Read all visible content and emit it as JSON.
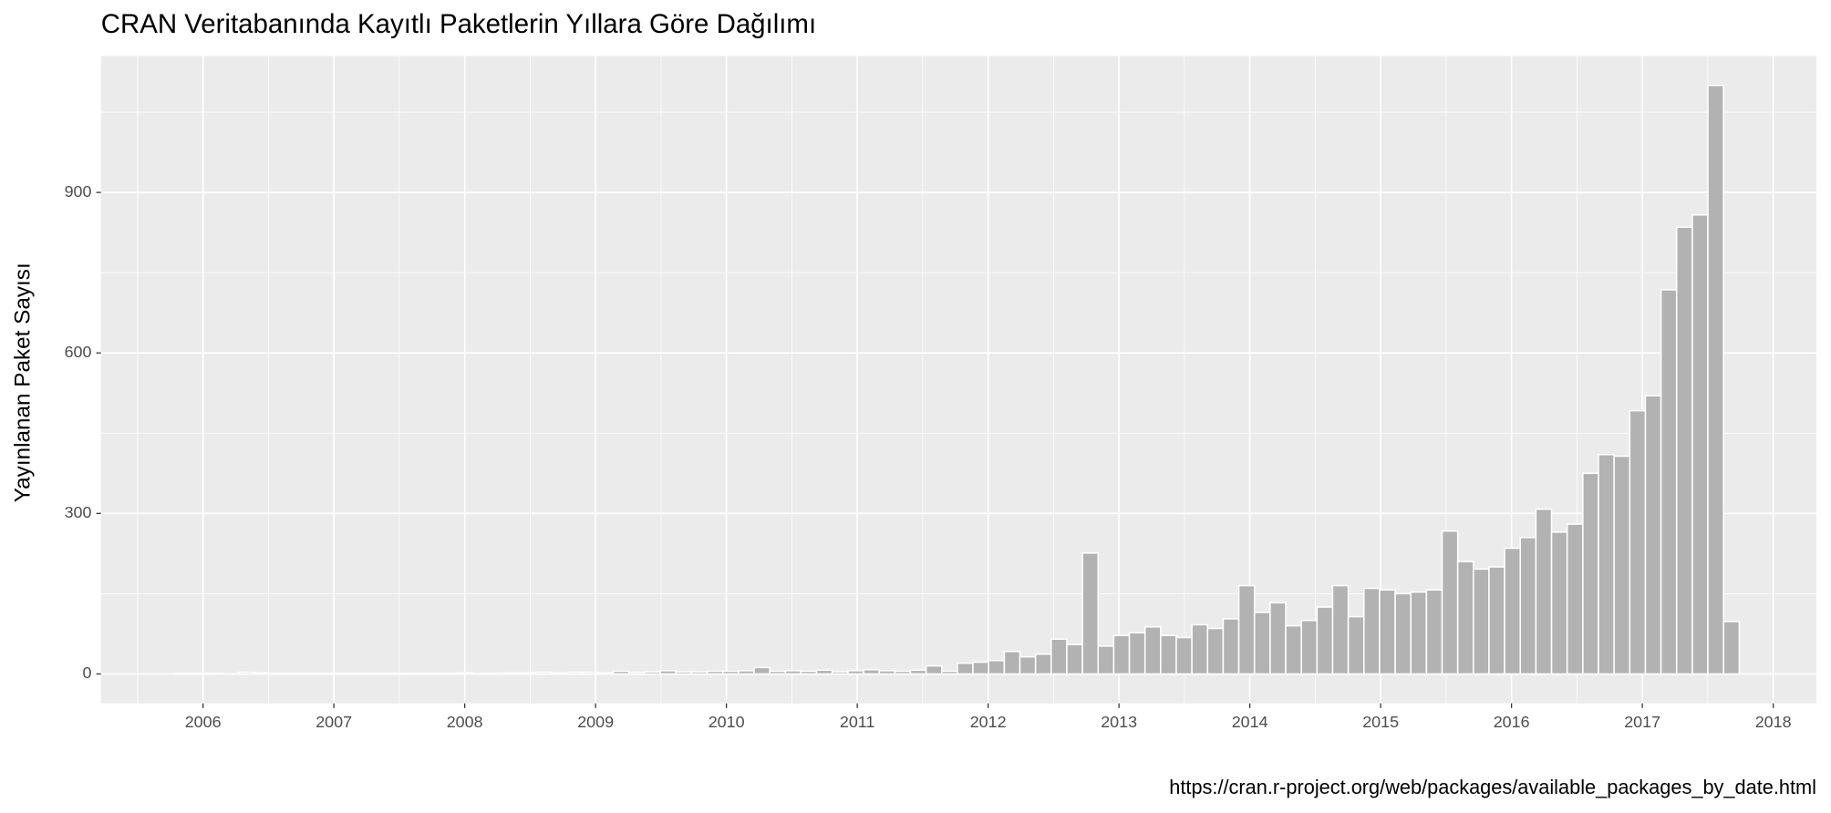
{
  "chart_data": {
    "type": "histogram",
    "title": "CRAN Veritabanında Kayıtlı Paketlerin Yıllara Göre Dağılımı",
    "ylabel": "Yayınlanan Paket Sayısı",
    "caption": "https://cran.r-project.org/web/packages/available_packages_by_date.html",
    "color": "#b2b2b2",
    "bins": [
      2005.79,
      2005.9095,
      2006.029,
      2006.1485,
      2006.268,
      2006.3875,
      2006.507,
      2006.6265,
      2006.746,
      2006.8655,
      2006.985,
      2007.1045,
      2007.224,
      2007.3435,
      2007.463,
      2007.5825,
      2007.702,
      2007.8215,
      2007.941,
      2008.0605,
      2008.18,
      2008.2995,
      2008.419,
      2008.5385,
      2008.658,
      2008.7775,
      2008.897,
      2009.0165,
      2009.136,
      2009.2555,
      2009.375,
      2009.4945,
      2009.614,
      2009.7335,
      2009.853,
      2009.9725,
      2010.092,
      2010.2115,
      2010.331,
      2010.4505,
      2010.57,
      2010.6895,
      2010.809,
      2010.9285,
      2011.048,
      2011.1675,
      2011.287,
      2011.4065,
      2011.526,
      2011.6455,
      2011.765,
      2011.8845,
      2012.004,
      2012.1235,
      2012.243,
      2012.3625,
      2012.482,
      2012.6015,
      2012.721,
      2012.8405,
      2012.96,
      2013.0795,
      2013.199,
      2013.3185,
      2013.438,
      2013.5575,
      2013.677,
      2013.7965,
      2013.916,
      2014.0355,
      2014.155,
      2014.2745,
      2014.394,
      2014.5135,
      2014.633,
      2014.7525,
      2014.872,
      2014.9915,
      2015.111,
      2015.2305,
      2015.35,
      2015.4695,
      2015.589,
      2015.7085,
      2015.828,
      2015.9475,
      2016.067,
      2016.1865,
      2016.306,
      2016.4255,
      2016.545,
      2016.6645,
      2016.784,
      2016.9035,
      2017.023,
      2017.1425,
      2017.262,
      2017.3815,
      2017.501,
      2017.6205,
      2017.74
    ],
    "values": [
      1,
      1,
      1,
      0,
      3,
      2,
      1,
      1,
      1,
      1,
      1,
      1,
      1,
      1,
      1,
      1,
      1,
      1,
      2,
      1,
      1,
      2,
      2,
      3,
      2,
      3,
      3,
      2,
      5,
      3,
      4,
      6,
      4,
      4,
      5,
      5,
      6,
      12,
      5,
      6,
      5,
      7,
      4,
      6,
      8,
      6,
      5,
      7,
      15,
      5,
      20,
      22,
      25,
      42,
      32,
      37,
      65,
      55,
      226,
      52,
      72,
      77,
      88,
      72,
      68,
      92,
      85,
      103,
      165,
      115,
      133,
      90,
      100,
      125,
      165,
      107,
      160,
      157,
      150,
      153,
      157,
      267,
      210,
      196,
      200,
      235,
      255,
      308,
      265,
      280,
      375,
      410,
      407,
      492,
      520,
      718,
      835,
      858,
      1100,
      98
    ],
    "xlim": [
      2005.22,
      2018.33
    ],
    "xticks": [
      2006,
      2007,
      2008,
      2009,
      2010,
      2011,
      2012,
      2013,
      2014,
      2015,
      2016,
      2017,
      2018
    ],
    "ylim": [
      -55,
      1155
    ],
    "yticks": [
      0,
      300,
      600,
      900
    ],
    "grid": true,
    "minor_grid": true
  }
}
